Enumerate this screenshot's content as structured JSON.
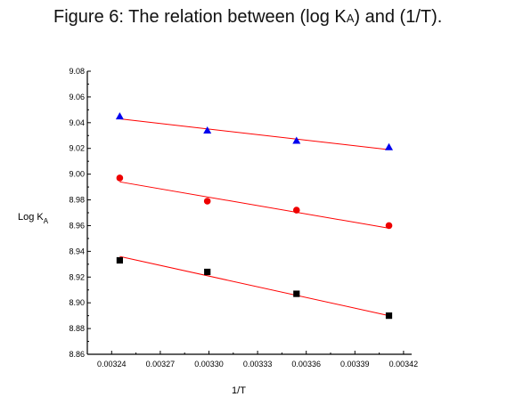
{
  "figure": {
    "title_prefix": "Figure 6: The relation between (log K",
    "title_sub": "A",
    "title_suffix": ") and (1/T)."
  },
  "chart_data": {
    "type": "scatter",
    "xlabel": "1/T",
    "ylabel": "Log K",
    "ylabel_sub": "A",
    "xlim": [
      0.003225,
      0.003425
    ],
    "ylim": [
      8.86,
      9.08
    ],
    "xticks": [
      0.00324,
      0.00327,
      0.0033,
      0.00333,
      0.00336,
      0.00339,
      0.00342
    ],
    "xtick_labels": [
      "0.00324",
      "0.00327",
      "0.00330",
      "0.00333",
      "0.00336",
      "0.00339",
      "0.00342"
    ],
    "yticks": [
      8.86,
      8.88,
      8.9,
      8.92,
      8.94,
      8.96,
      8.98,
      9.0,
      9.02,
      9.04,
      9.06,
      9.08
    ],
    "ytick_labels": [
      "8.86",
      "8.88",
      "8.90",
      "8.92",
      "8.94",
      "8.96",
      "8.98",
      "9.00",
      "9.02",
      "9.04",
      "9.06",
      "9.08"
    ],
    "grid": false,
    "legend": false,
    "fit_line_color": "#ff0000",
    "series": [
      {
        "marker": "triangle",
        "color": "#0000ee",
        "x": [
          0.003245,
          0.003299,
          0.003354,
          0.003411
        ],
        "y": [
          9.045,
          9.034,
          9.026,
          9.021
        ],
        "fit": [
          [
            0.003245,
            9.043
          ],
          [
            0.003411,
            9.019
          ]
        ]
      },
      {
        "marker": "circle",
        "color": "#ee0000",
        "x": [
          0.003245,
          0.003299,
          0.003354,
          0.003411
        ],
        "y": [
          8.997,
          8.979,
          8.972,
          8.96
        ],
        "fit": [
          [
            0.003245,
            8.994
          ],
          [
            0.003411,
            8.958
          ]
        ]
      },
      {
        "marker": "square",
        "color": "#000000",
        "x": [
          0.003245,
          0.003299,
          0.003354,
          0.003411
        ],
        "y": [
          8.933,
          8.924,
          8.907,
          8.89
        ],
        "fit": [
          [
            0.003245,
            8.936
          ],
          [
            0.003411,
            8.89
          ]
        ]
      }
    ]
  }
}
